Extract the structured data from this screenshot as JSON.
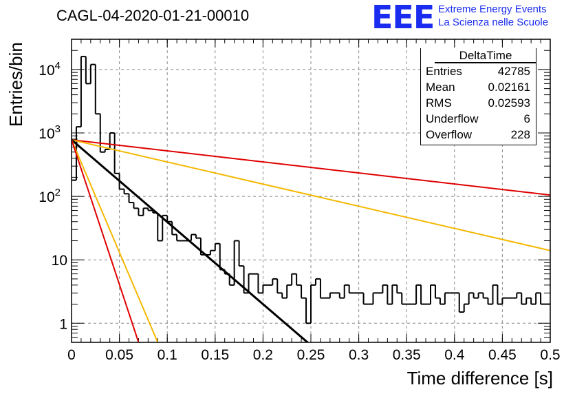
{
  "chart_data": {
    "type": "histogram",
    "title": "CAGL-04-2020-01-21-00010",
    "xlabel": "Time difference [s]",
    "ylabel": "Entries/bin",
    "xlim": [
      0,
      0.5
    ],
    "ylim": [
      0.5,
      30000
    ],
    "yscale": "log",
    "grid": true,
    "x_ticks": [
      "0",
      "0.05",
      "0.1",
      "0.15",
      "0.2",
      "0.25",
      "0.3",
      "0.35",
      "0.4",
      "0.45",
      "0.5"
    ],
    "y_ticks": [
      {
        "value": 1,
        "label": "1"
      },
      {
        "value": 10,
        "label": "10"
      },
      {
        "value": 100,
        "label": "10^2"
      },
      {
        "value": 1000,
        "label": "10^3"
      },
      {
        "value": 10000,
        "label": "10^4"
      }
    ],
    "bin_width": 0.005,
    "counts": [
      180,
      1250,
      16000,
      6000,
      12000,
      2000,
      500,
      550,
      1000,
      230,
      130,
      110,
      80,
      65,
      50,
      65,
      60,
      55,
      20,
      50,
      40,
      25,
      20,
      20,
      20,
      25,
      22,
      12,
      12,
      14,
      18,
      7,
      6,
      4,
      20,
      8,
      3,
      6,
      6,
      3,
      4,
      4,
      5,
      3,
      2.5,
      4,
      6,
      4,
      2.5,
      1,
      4,
      5,
      2.5,
      2.5,
      3,
      3,
      2.5,
      4,
      3,
      3,
      3,
      2,
      2,
      3,
      3,
      4,
      2,
      4,
      3,
      2,
      2,
      2,
      4,
      2,
      2,
      4,
      2.5,
      2,
      3,
      3,
      3,
      1.5,
      2,
      3,
      2.5,
      3,
      2.5,
      2,
      4,
      2,
      2.5,
      2.5,
      2.5,
      3,
      2,
      2.5,
      2,
      3,
      2,
      2
    ],
    "fits": [
      {
        "color": "#e00000",
        "x0": 0,
        "y0": 780,
        "x1": 0.5,
        "y1": 105
      },
      {
        "color": "#f5b800",
        "x0": 0,
        "y0": 780,
        "x1": 0.5,
        "y1": 14
      },
      {
        "color": "#000000",
        "x0": 0,
        "y0": 780,
        "x1": 0.25,
        "y1": 0.45
      },
      {
        "color": "#f5b800",
        "x0": 0,
        "y0": 780,
        "x1": 0.09,
        "y1": 0.5
      },
      {
        "color": "#e00000",
        "x0": 0,
        "y0": 780,
        "x1": 0.07,
        "y1": 0.5
      }
    ]
  },
  "stats_box": {
    "header": "DeltaTime",
    "rows": [
      {
        "label": "Entries",
        "value": "42785"
      },
      {
        "label": "Mean",
        "value": "0.02161"
      },
      {
        "label": "RMS",
        "value": "0.02593"
      },
      {
        "label": "Underflow",
        "value": "6"
      },
      {
        "label": "Overflow",
        "value": "228"
      }
    ]
  },
  "logo": {
    "mark": "EEE",
    "line1": "Extreme Energy Events",
    "line2": "La Scienza nelle Scuole"
  }
}
